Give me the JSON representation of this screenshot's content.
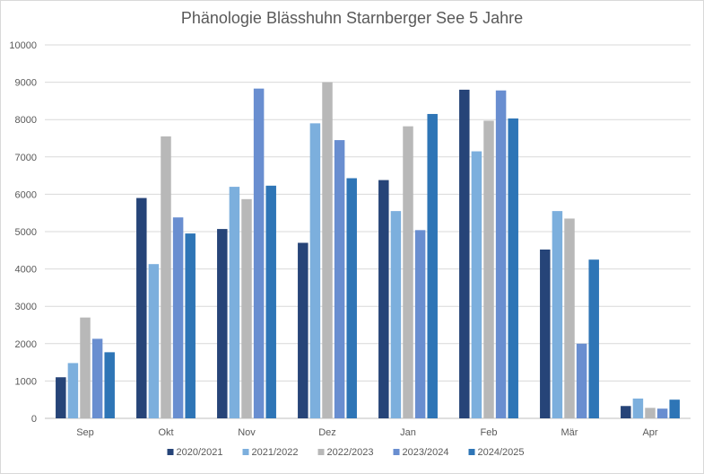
{
  "chart_data": {
    "type": "bar",
    "title": "Phänologie Blässhuhn Starnberger See  5 Jahre",
    "xlabel": "",
    "ylabel": "",
    "ylim": [
      0,
      10000
    ],
    "yticks": [
      0,
      1000,
      2000,
      3000,
      4000,
      5000,
      6000,
      7000,
      8000,
      9000,
      10000
    ],
    "grid": true,
    "legend_position": "bottom",
    "categories": [
      "Sep",
      "Okt",
      "Nov",
      "Dez",
      "Jan",
      "Feb",
      "Mär",
      "Apr"
    ],
    "series": [
      {
        "name": "2020/2021",
        "color": "#264478",
        "values": [
          1100,
          5900,
          5070,
          4700,
          6380,
          8800,
          4520,
          330
        ]
      },
      {
        "name": "2021/2022",
        "color": "#7cafdd",
        "values": [
          1480,
          4130,
          6200,
          7900,
          5550,
          7150,
          5550,
          530
        ]
      },
      {
        "name": "2022/2023",
        "color": "#b8b8b8",
        "values": [
          2700,
          7550,
          5870,
          9000,
          7820,
          7970,
          5350,
          280
        ]
      },
      {
        "name": "2023/2024",
        "color": "#698ed0",
        "values": [
          2130,
          5380,
          8830,
          7450,
          5040,
          8780,
          2000,
          260
        ]
      },
      {
        "name": "2024/2025",
        "color": "#2e75b6",
        "values": [
          1770,
          4950,
          6230,
          6430,
          8150,
          8030,
          4250,
          500
        ]
      }
    ]
  }
}
